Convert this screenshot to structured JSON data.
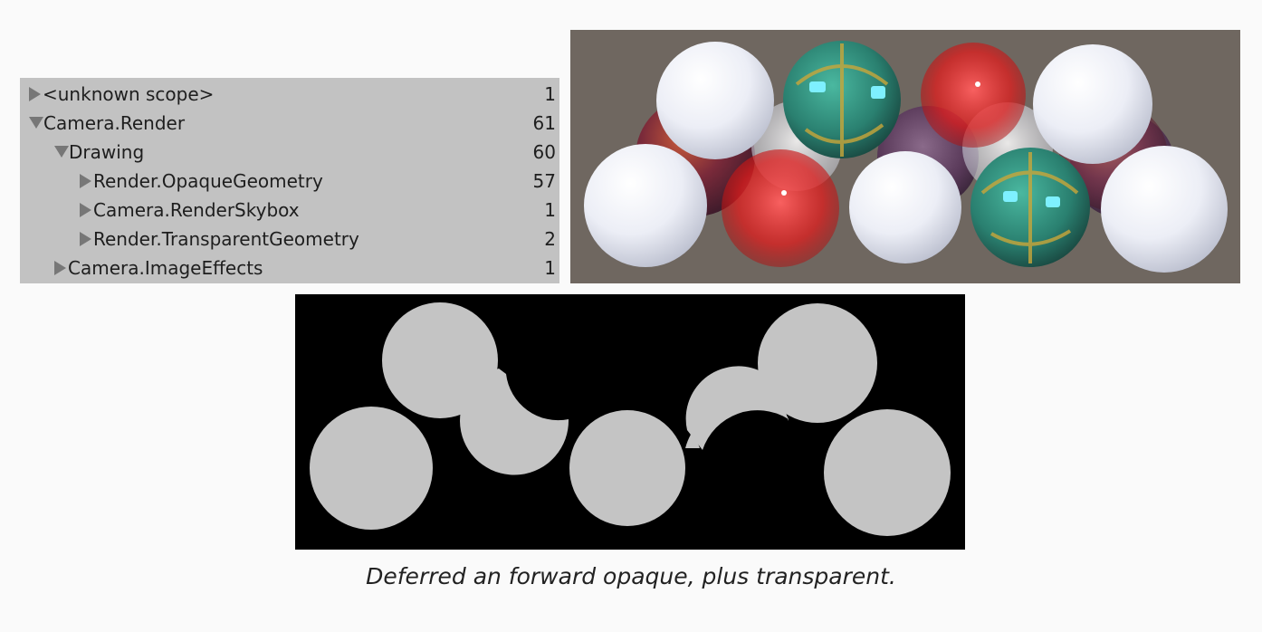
{
  "profiler": {
    "rows": [
      {
        "label": "<unknown scope>",
        "count": "1",
        "expanded": false
      },
      {
        "label": "Camera.Render",
        "count": "61",
        "expanded": true
      },
      {
        "label": "Drawing",
        "count": "60",
        "expanded": true
      },
      {
        "label": "Render.OpaqueGeometry",
        "count": "57",
        "expanded": false
      },
      {
        "label": "Camera.RenderSkybox",
        "count": "1",
        "expanded": false
      },
      {
        "label": "Render.TransparentGeometry",
        "count": "2",
        "expanded": false
      },
      {
        "label": "Camera.ImageEffects",
        "count": "1",
        "expanded": false
      }
    ]
  },
  "caption": "Deferred an forward opaque, plus transparent.",
  "colors": {
    "profiler_bg": "#c2c2c2",
    "scene_bg": "#6f6760",
    "mask_bg": "#000000",
    "mask_fill": "#c4c4c4",
    "white_sphere": "#eef0f8",
    "green_sphere": "#2a8a7a",
    "red_sphere": "#e02020",
    "lava_sphere": "#8a3030"
  }
}
